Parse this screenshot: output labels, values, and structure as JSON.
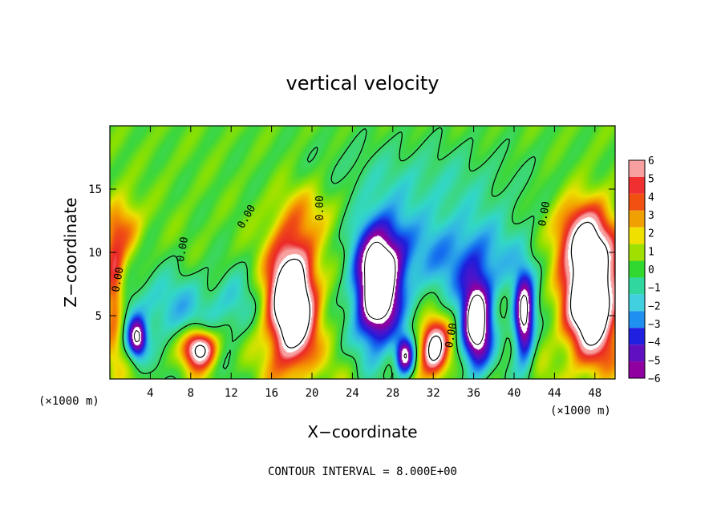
{
  "chart_data": {
    "type": "heatmap",
    "title": "vertical velocity",
    "xlabel": "X−coordinate",
    "ylabel": "Z−coordinate",
    "x_unit_label_left": "(×1000 m)",
    "x_unit_label_right": "(×1000 m)",
    "footer": "CONTOUR INTERVAL = 8.000E+00",
    "xlim": [
      0,
      50
    ],
    "ylim": [
      0,
      20
    ],
    "x_ticks": [
      4,
      8,
      12,
      16,
      20,
      24,
      28,
      32,
      36,
      40,
      44,
      48
    ],
    "x_tick_labels": [
      "4",
      "8",
      "12",
      "16",
      "20",
      "24",
      "28",
      "32",
      "36",
      "40",
      "44",
      "48"
    ],
    "y_ticks": [
      5,
      10,
      15
    ],
    "y_tick_labels": [
      "5",
      "10",
      "15"
    ],
    "colorbar": {
      "min": -6,
      "max": 6,
      "labels": [
        "6",
        "5",
        "4",
        "3",
        "2",
        "1",
        "0",
        "−1",
        "−2",
        "−3",
        "−4",
        "−5",
        "−6"
      ],
      "colors": [
        "#f8a0a0",
        "#f03030",
        "#f05010",
        "#f0a000",
        "#f0e000",
        "#a0e000",
        "#30d830",
        "#30d8a0",
        "#40d0e0",
        "#2090f0",
        "#2020e0",
        "#6010c0",
        "#9000a0"
      ]
    },
    "contour_labels": [
      {
        "text": "0.00",
        "x": 7.5,
        "y": 10.2,
        "rot": -80
      },
      {
        "text": "0.00",
        "x": 13.8,
        "y": 12.7,
        "rot": -60
      },
      {
        "text": "0.00",
        "x": 21.1,
        "y": 13.5,
        "rot": -90
      },
      {
        "text": "0.00",
        "x": 34.1,
        "y": 3.4,
        "rot": -80
      },
      {
        "text": "0.00",
        "x": 43.3,
        "y": 13.0,
        "rot": -80
      },
      {
        "text": "0.00",
        "x": 1.1,
        "y": 7.8,
        "rot": -80
      }
    ],
    "features": [
      {
        "kind": "updraft",
        "x": 18.0,
        "y": 6.0,
        "rx": 2.3,
        "ry": 5.0,
        "peak": 12
      },
      {
        "kind": "updraft",
        "x": 47.6,
        "y": 6.7,
        "rx": 2.6,
        "ry": 5.0,
        "peak": 12
      },
      {
        "kind": "updraft",
        "x": 8.9,
        "y": 2.4,
        "rx": 1.6,
        "ry": 1.5,
        "peak": 9
      },
      {
        "kind": "updraft",
        "x": 32.1,
        "y": 2.4,
        "rx": 1.4,
        "ry": 2.2,
        "peak": 9
      },
      {
        "kind": "updraft",
        "x": 46.5,
        "y": 11.5,
        "rx": 3.0,
        "ry": 2.6,
        "peak": 4
      },
      {
        "kind": "updraft",
        "x": 0.4,
        "y": 7.0,
        "rx": 1.0,
        "ry": 5.0,
        "peak": 5
      },
      {
        "kind": "updraft",
        "x": 1.6,
        "y": 12.0,
        "rx": 1.5,
        "ry": 2.2,
        "peak": 3
      },
      {
        "kind": "updraft",
        "x": 20.0,
        "y": 13.5,
        "rx": 3.5,
        "ry": 2.5,
        "peak": 2
      },
      {
        "kind": "downdraft",
        "x": 26.5,
        "y": 6.6,
        "rx": 2.2,
        "ry": 4.0,
        "peak": -12
      },
      {
        "kind": "downdraft",
        "x": 36.3,
        "y": 4.2,
        "rx": 1.5,
        "ry": 3.6,
        "peak": -11
      },
      {
        "kind": "downdraft",
        "x": 41.0,
        "y": 4.8,
        "rx": 1.0,
        "ry": 3.3,
        "peak": -10
      },
      {
        "kind": "downdraft",
        "x": 29.2,
        "y": 1.8,
        "rx": 0.9,
        "ry": 1.5,
        "peak": -9
      },
      {
        "kind": "downdraft",
        "x": 2.7,
        "y": 3.2,
        "rx": 0.9,
        "ry": 1.5,
        "peak": -8
      },
      {
        "kind": "downdraft",
        "x": 35.0,
        "y": 9.5,
        "rx": 6.5,
        "ry": 3.5,
        "peak": -4
      },
      {
        "kind": "downdraft",
        "x": 27.0,
        "y": 10.5,
        "rx": 3.0,
        "ry": 3.0,
        "peak": -4
      },
      {
        "kind": "downdraft",
        "x": 6.0,
        "y": 5.5,
        "rx": 5.5,
        "ry": 3.0,
        "peak": -3
      },
      {
        "kind": "downdraft",
        "x": 30.0,
        "y": 15.5,
        "rx": 11.0,
        "ry": 3.5,
        "peak": -1.8
      },
      {
        "kind": "downdraft",
        "x": 12.5,
        "y": 6.0,
        "rx": 2.0,
        "ry": 2.5,
        "peak": -2
      }
    ]
  }
}
